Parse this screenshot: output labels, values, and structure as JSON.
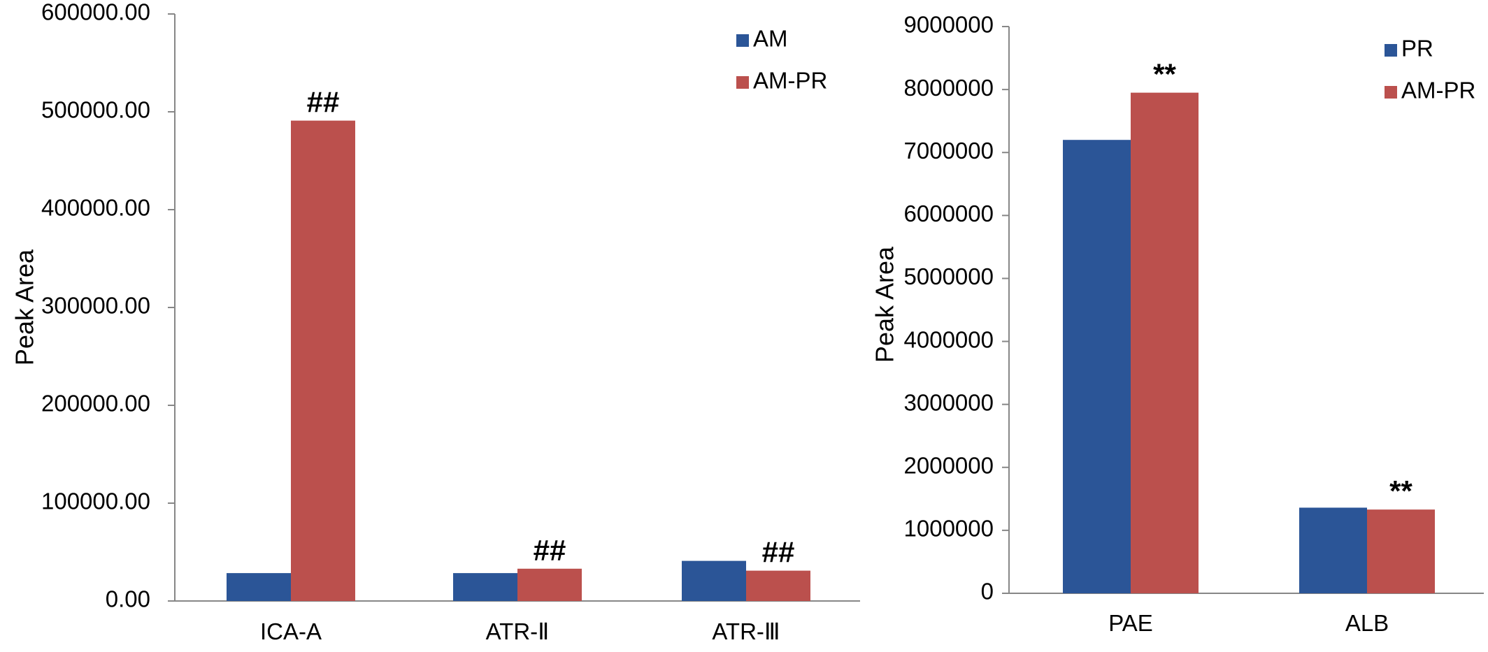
{
  "chart_data": [
    {
      "type": "bar",
      "title": "",
      "xlabel": "",
      "ylabel": "Peak Area",
      "ylim": [
        0,
        600000
      ],
      "yticks": [
        "0.00",
        "100000.00",
        "200000.00",
        "300000.00",
        "400000.00",
        "500000.00",
        "600000.00"
      ],
      "categories": [
        "ICA-A",
        "ATR-Ⅱ",
        "ATR-Ⅲ"
      ],
      "series": [
        {
          "name": "AM",
          "color": "#2B5597",
          "values": [
            28500,
            28500,
            41000
          ]
        },
        {
          "name": "AM-PR",
          "color": "#BB504D",
          "values": [
            491000,
            33000,
            31000
          ]
        }
      ],
      "annotations": [
        {
          "category": "ICA-A",
          "series": "AM-PR",
          "text": "##"
        },
        {
          "category": "ATR-Ⅱ",
          "series": "AM-PR",
          "text": "##"
        },
        {
          "category": "ATR-Ⅲ",
          "series": "AM-PR",
          "text": "##"
        }
      ],
      "grid": false,
      "legend": "top-right"
    },
    {
      "type": "bar",
      "title": "",
      "xlabel": "",
      "ylabel": "Peak Area",
      "ylim": [
        0,
        9000000
      ],
      "yticks": [
        "0",
        "1000000",
        "2000000",
        "3000000",
        "4000000",
        "5000000",
        "6000000",
        "7000000",
        "8000000",
        "9000000"
      ],
      "categories": [
        "PAE",
        "ALB"
      ],
      "series": [
        {
          "name": "PR",
          "color": "#2B5597",
          "values": [
            7200000,
            1360000
          ]
        },
        {
          "name": "AM-PR",
          "color": "#BB504D",
          "values": [
            7950000,
            1330000
          ]
        }
      ],
      "annotations": [
        {
          "category": "PAE",
          "series": "AM-PR",
          "text": "**"
        },
        {
          "category": "ALB",
          "series": "AM-PR",
          "text": "**"
        }
      ],
      "grid": false,
      "legend": "top-right"
    }
  ]
}
